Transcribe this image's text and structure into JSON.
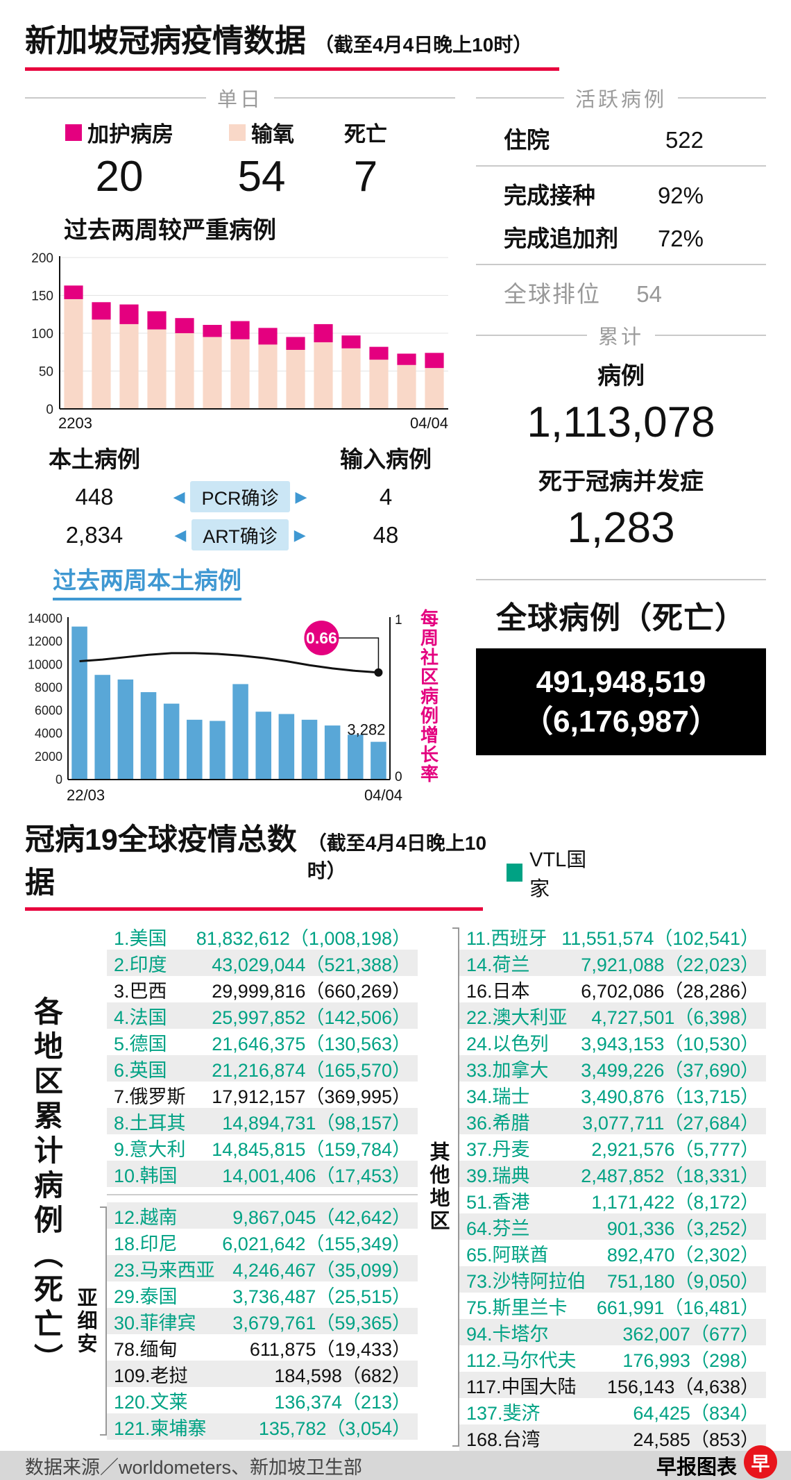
{
  "colors": {
    "magenta": "#e4007f",
    "light_pink": "#f9d8c8",
    "bar_blue": "#59a7d7",
    "accent_blue": "#3f98d2",
    "vtl_teal": "#00a284",
    "underline_red": "#e8003d",
    "black_box": "#000000"
  },
  "header": {
    "title": "新加坡冠病疫情数据",
    "subtitle": "（截至4月4日晚上10时）"
  },
  "daily": {
    "section_label": "单日",
    "items": [
      {
        "label": "加护病房",
        "value": "20",
        "swatch": "#e4007f"
      },
      {
        "label": "输氧",
        "value": "54",
        "swatch": "#f9d8c8"
      },
      {
        "label": "死亡",
        "value": "7",
        "swatch": ""
      }
    ]
  },
  "cases": {
    "local_label": "本土病例",
    "import_label": "输入病例",
    "pcr_label": "PCR确诊",
    "art_label": "ART确诊",
    "local_pcr": "448",
    "local_art": "2,834",
    "import_pcr": "4",
    "import_art": "48"
  },
  "active": {
    "section_label": "活跃病例",
    "rows": [
      {
        "label": "住院",
        "value": "522"
      },
      {
        "label": "完成接种",
        "value": "92%"
      },
      {
        "label": "完成追加剂",
        "value": "72%"
      }
    ],
    "rank_label": "全球排位",
    "rank_value": "54"
  },
  "cumulative": {
    "section_label": "累计",
    "cases_label": "病例",
    "cases_value": "1,113,078",
    "deaths_label": "死于冠病并发症",
    "deaths_value": "1,283"
  },
  "global_box": {
    "title": "全球病例（死亡）",
    "cases": "491,948,519",
    "deaths": "（6,176,987）"
  },
  "world": {
    "title": "冠病19全球疫情总数据",
    "subtitle": "（截至4月4日晚上10时）",
    "legend_label": "VTL国家",
    "side_label": "各地区累计病例（死亡）",
    "asean_label": "亚细安",
    "other_label": "其他地区",
    "left_top": [
      {
        "name": "1.美国",
        "value": "81,832,612（1,008,198）",
        "vtl": true
      },
      {
        "name": "2.印度",
        "value": "43,029,044（521,388）",
        "vtl": true
      },
      {
        "name": "3.巴西",
        "value": "29,999,816（660,269）",
        "vtl": false
      },
      {
        "name": "4.法国",
        "value": "25,997,852（142,506）",
        "vtl": true
      },
      {
        "name": "5.德国",
        "value": "21,646,375（130,563）",
        "vtl": true
      },
      {
        "name": "6.英国",
        "value": "21,216,874（165,570）",
        "vtl": true
      },
      {
        "name": "7.俄罗斯",
        "value": "17,912,157（369,995）",
        "vtl": false
      },
      {
        "name": "8.土耳其",
        "value": "14,894,731（98,157）",
        "vtl": true
      },
      {
        "name": "9.意大利",
        "value": "14,845,815（159,784）",
        "vtl": true
      },
      {
        "name": "10.韩国",
        "value": "14,001,406（17,453）",
        "vtl": true
      }
    ],
    "left_asean": [
      {
        "name": "12.越南",
        "value": "9,867,045（42,642）",
        "vtl": true
      },
      {
        "name": "18.印尼",
        "value": "6,021,642（155,349）",
        "vtl": true
      },
      {
        "name": "23.马来西亚",
        "value": "4,246,467（35,099）",
        "vtl": true
      },
      {
        "name": "29.泰国",
        "value": "3,736,487（25,515）",
        "vtl": true
      },
      {
        "name": "30.菲律宾",
        "value": "3,679,761（59,365）",
        "vtl": true
      },
      {
        "name": "78.缅甸",
        "value": "611,875（19,433）",
        "vtl": false
      },
      {
        "name": "109.老挝",
        "value": "184,598（682）",
        "vtl": false
      },
      {
        "name": "120.文莱",
        "value": "136,374（213）",
        "vtl": true
      },
      {
        "name": "121.柬埔寨",
        "value": "135,782（3,054）",
        "vtl": true
      }
    ],
    "right": [
      {
        "name": "11.西班牙",
        "value": "11,551,574（102,541）",
        "vtl": true
      },
      {
        "name": "14.荷兰",
        "value": "7,921,088（22,023）",
        "vtl": true
      },
      {
        "name": "16.日本",
        "value": "6,702,086（28,286）",
        "vtl": false
      },
      {
        "name": "22.澳大利亚",
        "value": "4,727,501（6,398）",
        "vtl": true
      },
      {
        "name": "24.以色列",
        "value": "3,943,153（10,530）",
        "vtl": true
      },
      {
        "name": "33.加拿大",
        "value": "3,499,226（37,690）",
        "vtl": true
      },
      {
        "name": "34.瑞士",
        "value": "3,490,876（13,715）",
        "vtl": true
      },
      {
        "name": "36.希腊",
        "value": "3,077,711（27,684）",
        "vtl": true
      },
      {
        "name": "37.丹麦",
        "value": "2,921,576（5,777）",
        "vtl": true
      },
      {
        "name": "39.瑞典",
        "value": "2,487,852（18,331）",
        "vtl": true
      },
      {
        "name": "51.香港",
        "value": "1,171,422（8,172）",
        "vtl": true
      },
      {
        "name": "64.芬兰",
        "value": "901,336（3,252）",
        "vtl": true
      },
      {
        "name": "65.阿联酋",
        "value": "892,470（2,302）",
        "vtl": true
      },
      {
        "name": "73.沙特阿拉伯",
        "value": "751,180（9,050）",
        "vtl": true
      },
      {
        "name": "75.斯里兰卡",
        "value": "661,991（16,481）",
        "vtl": true
      },
      {
        "name": "94.卡塔尔",
        "value": "362,007（677）",
        "vtl": true
      },
      {
        "name": "112.马尔代夫",
        "value": "176,993（298）",
        "vtl": true
      },
      {
        "name": "117.中国大陆",
        "value": "156,143（4,638）",
        "vtl": false
      },
      {
        "name": "137.斐济",
        "value": "64,425（834）",
        "vtl": true
      },
      {
        "name": "168.台湾",
        "value": "24,585（853）",
        "vtl": false
      }
    ]
  },
  "footer": {
    "source": "数据来源／worldometers、新加坡卫生部",
    "credit": "早报图表",
    "logo_char": "早"
  },
  "chart_data": [
    {
      "type": "bar",
      "stacked": true,
      "title": "过去两周较严重病例",
      "x_start_label": "2203",
      "x_end_label": "04/04",
      "ylim": [
        0,
        200
      ],
      "yticks": [
        0,
        50,
        100,
        150,
        200
      ],
      "grid": true,
      "series": [
        {
          "name": "输氧",
          "color": "#f9d8c8",
          "values": [
            145,
            118,
            112,
            105,
            100,
            95,
            92,
            85,
            78,
            88,
            80,
            65,
            58,
            54
          ]
        },
        {
          "name": "加护病房",
          "color": "#e4007f",
          "values": [
            18,
            23,
            26,
            24,
            20,
            16,
            24,
            22,
            17,
            24,
            17,
            17,
            15,
            20
          ]
        }
      ]
    },
    {
      "type": "bar",
      "overlay": "line",
      "title": "过去两周本土病例",
      "x_start_label": "22/03",
      "x_end_label": "04/04",
      "ylim": [
        0,
        14000
      ],
      "yticks": [
        0,
        2000,
        4000,
        6000,
        8000,
        10000,
        12000,
        14000
      ],
      "bar_color": "#59a7d7",
      "bars": [
        13300,
        9100,
        8700,
        7600,
        6600,
        5200,
        5100,
        8300,
        5900,
        5700,
        5200,
        4700,
        3900,
        3282
      ],
      "last_bar_label": "3,282",
      "line_label": "每周社区病例增长率",
      "line_axis": {
        "min": 0,
        "max": 1,
        "ticks": [
          1,
          0
        ]
      },
      "line_values": [
        0.735,
        0.745,
        0.76,
        0.775,
        0.785,
        0.785,
        0.78,
        0.77,
        0.755,
        0.735,
        0.71,
        0.69,
        0.675,
        0.665
      ],
      "line_end_label": "0.66",
      "badge_color": "#e4007f"
    }
  ]
}
